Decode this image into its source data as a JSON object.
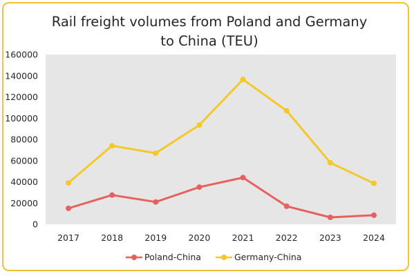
{
  "chart_data": {
    "type": "line",
    "title_lines": [
      "Rail freight volumes from Poland and Germany",
      "to China (TEU)"
    ],
    "categories": [
      "2017",
      "2018",
      "2019",
      "2020",
      "2021",
      "2022",
      "2023",
      "2024"
    ],
    "y_ticks": [
      "0",
      "20000",
      "40000",
      "60000",
      "80000",
      "100000",
      "120000",
      "140000",
      "160000"
    ],
    "ylim": [
      0,
      160000
    ],
    "grid": false,
    "plot_background": "#e6e6e6",
    "legend_position": "bottom",
    "series": [
      {
        "name": "Poland-China",
        "color": "#e8605e",
        "values": [
          15000,
          27500,
          21000,
          35000,
          44000,
          17000,
          6500,
          8500
        ]
      },
      {
        "name": "Germany-China",
        "color": "#f5c829",
        "values": [
          39000,
          74000,
          67000,
          93500,
          136500,
          107000,
          58000,
          38500
        ]
      }
    ]
  },
  "colors": {
    "frame_border": "#f2c233"
  }
}
